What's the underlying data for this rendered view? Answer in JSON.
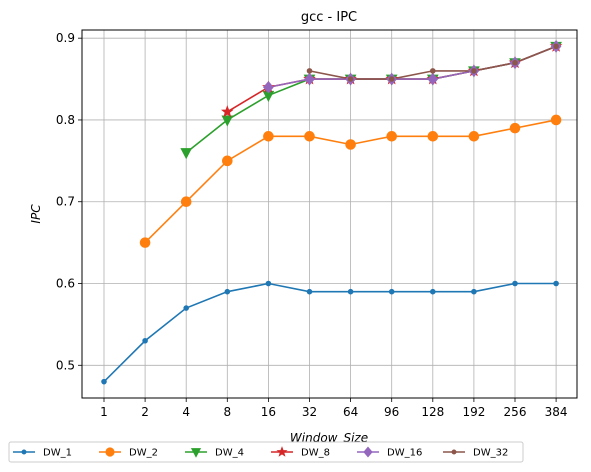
{
  "chart_data": {
    "type": "line",
    "title": "gcc - IPC",
    "xlabel": "Window_Size",
    "ylabel": "IPC",
    "categories": [
      "1",
      "2",
      "4",
      "8",
      "16",
      "32",
      "64",
      "96",
      "128",
      "192",
      "256",
      "384"
    ],
    "ylim": [
      0.46,
      0.91
    ],
    "yticks": [
      0.5,
      0.6,
      0.7,
      0.8,
      0.9
    ],
    "grid": true,
    "legend_position": "bottom",
    "series": [
      {
        "name": "DW_1",
        "color": "#1f77b4",
        "marker": "point",
        "values": [
          0.48,
          0.53,
          0.57,
          0.59,
          0.6,
          0.59,
          0.59,
          0.59,
          0.59,
          0.59,
          0.6,
          0.6
        ]
      },
      {
        "name": "DW_2",
        "color": "#ff7f0e",
        "marker": "circle",
        "values": [
          null,
          0.65,
          0.7,
          0.75,
          0.78,
          0.78,
          0.77,
          0.78,
          0.78,
          0.78,
          0.79,
          0.8
        ]
      },
      {
        "name": "DW_4",
        "color": "#2ca02c",
        "marker": "triangle-down",
        "values": [
          null,
          null,
          0.76,
          0.8,
          0.83,
          0.85,
          0.85,
          0.85,
          0.85,
          0.86,
          0.87,
          0.89
        ]
      },
      {
        "name": "DW_8",
        "color": "#d62728",
        "marker": "star",
        "values": [
          null,
          null,
          null,
          0.81,
          0.84,
          0.85,
          0.85,
          0.85,
          0.85,
          0.86,
          0.87,
          0.89
        ]
      },
      {
        "name": "DW_16",
        "color": "#9467bd",
        "marker": "diamond",
        "values": [
          null,
          null,
          null,
          null,
          0.84,
          0.85,
          0.85,
          0.85,
          0.85,
          0.86,
          0.87,
          0.89
        ]
      },
      {
        "name": "DW_32",
        "color": "#8c564b",
        "marker": "point",
        "values": [
          null,
          null,
          null,
          null,
          null,
          0.86,
          0.85,
          0.85,
          0.86,
          0.86,
          0.87,
          0.89
        ]
      }
    ]
  }
}
